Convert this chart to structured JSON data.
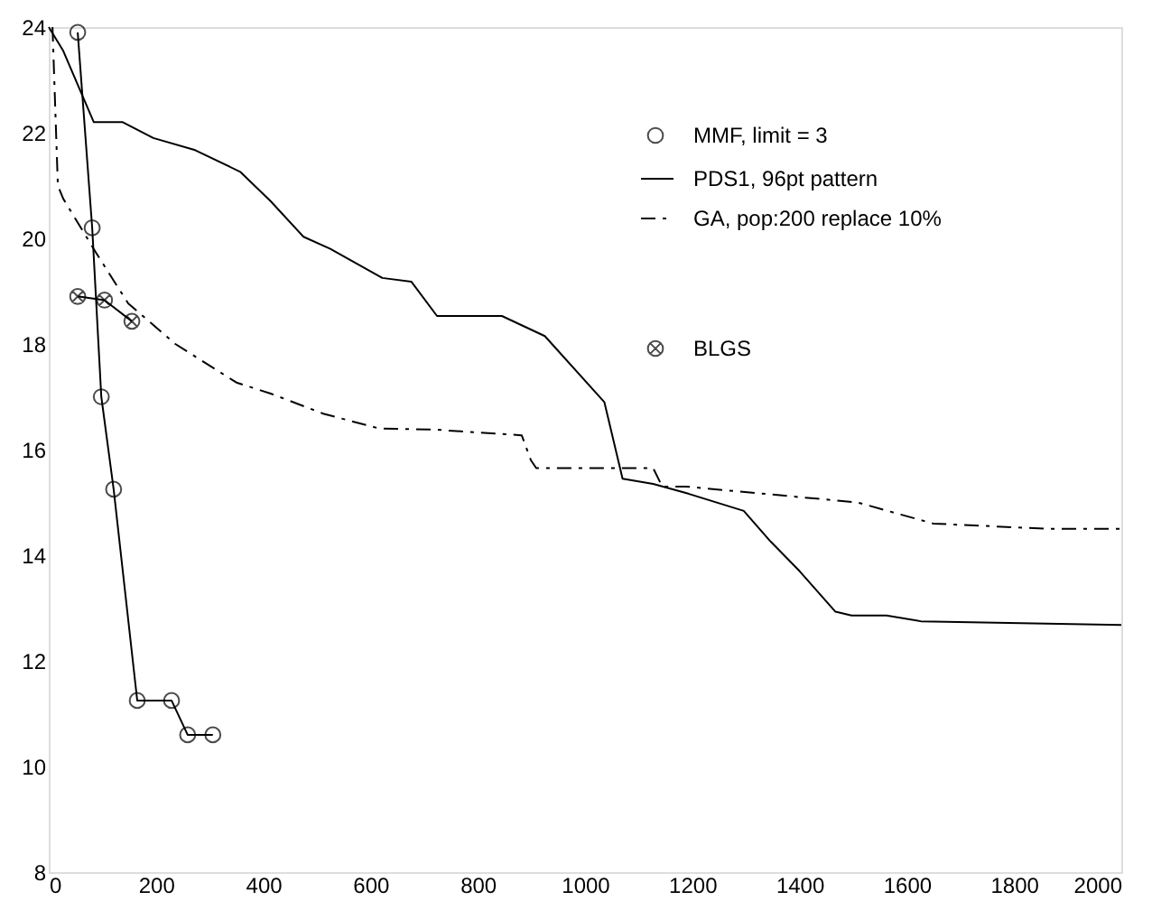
{
  "chart_data": {
    "type": "line",
    "xlim": [
      0,
      2000
    ],
    "ylim": [
      8,
      24
    ],
    "xticks": [
      0,
      200,
      400,
      600,
      800,
      1000,
      1200,
      1400,
      1600,
      1800,
      2000
    ],
    "yticks": [
      8,
      10,
      12,
      14,
      16,
      18,
      20,
      22,
      24
    ],
    "grid": false,
    "legend": "top right",
    "series": [
      {
        "name": "MMF, limit = 3",
        "color": "#000000",
        "marker": "circle",
        "line_style": "solid",
        "x": [
          54,
          81,
          98,
          121,
          165,
          229,
          259,
          306
        ],
        "values": [
          23.9,
          20.2,
          17.0,
          15.25,
          11.25,
          11.25,
          10.6,
          10.6
        ]
      },
      {
        "name": "PDS1, 96pt pattern",
        "color": "#000000",
        "marker": "none",
        "line_style": "solid",
        "x": [
          0,
          27,
          84,
          138,
          195,
          273,
          357,
          414,
          475,
          525,
          622,
          676,
          724,
          845,
          925,
          1036,
          1070,
          1127,
          1188,
          1296,
          1346,
          1400,
          1467,
          1497,
          1562,
          1626,
          2000
        ],
        "values": [
          24.0,
          23.55,
          22.2,
          22.2,
          21.9,
          21.67,
          21.26,
          20.7,
          20.03,
          19.8,
          19.25,
          19.18,
          18.53,
          18.53,
          18.15,
          16.9,
          15.45,
          15.35,
          15.18,
          14.84,
          14.26,
          13.7,
          12.93,
          12.86,
          12.86,
          12.75,
          12.68
        ]
      },
      {
        "name": "GA, pop:200  replace 10%",
        "color": "#000000",
        "marker": "none",
        "line_style": "dashed",
        "x": [
          7,
          17,
          27,
          88,
          148,
          236,
          350,
          414,
          512,
          616,
          717,
          882,
          899,
          909,
          1127,
          1144,
          1188,
          1508,
          1649,
          1861,
          2000
        ],
        "values": [
          24.0,
          21.0,
          20.75,
          19.73,
          18.77,
          18.0,
          17.27,
          17.06,
          16.68,
          16.4,
          16.38,
          16.27,
          15.8,
          15.65,
          15.65,
          15.3,
          15.3,
          15.0,
          14.6,
          14.5,
          14.5
        ]
      },
      {
        "name": "BLGS",
        "color": "#000000",
        "marker": "cross",
        "line_style": "solid",
        "x": [
          54,
          104,
          155
        ],
        "values": [
          18.9,
          18.83,
          18.43
        ]
      }
    ]
  }
}
